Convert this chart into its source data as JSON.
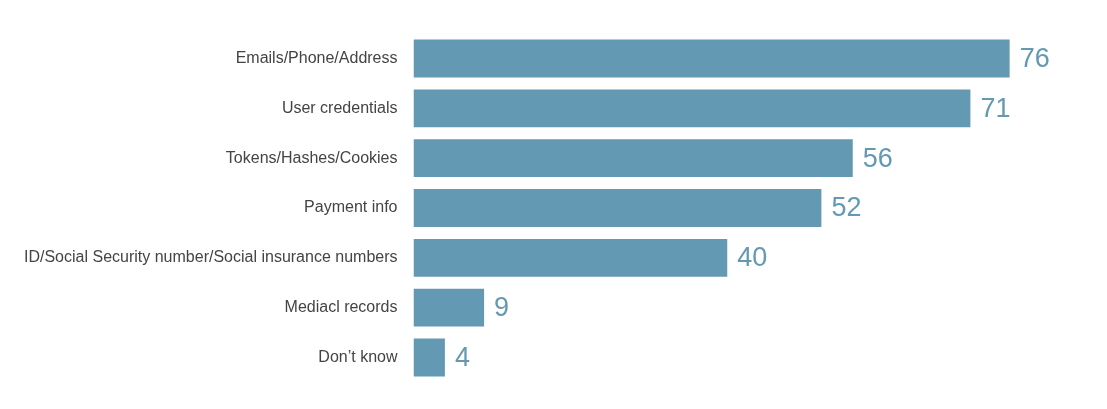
{
  "chart_data": {
    "type": "bar",
    "orientation": "horizontal",
    "categories": [
      "Emails/Phone/Address",
      "User credentials",
      "Tokens/Hashes/Cookies",
      "Payment info",
      "ID/Social Security number/Social insurance numbers",
      "Mediacl records",
      "Don’t know"
    ],
    "values": [
      76,
      71,
      56,
      52,
      40,
      9,
      4
    ],
    "color": "#6399b2",
    "data_labels": true,
    "grid": false,
    "legend": false
  }
}
